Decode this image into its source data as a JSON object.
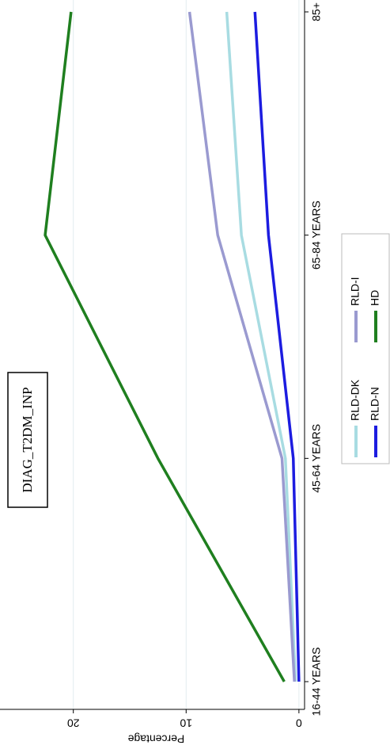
{
  "chart_data": {
    "type": "line",
    "title": "DIAG_T2DM_INP",
    "y_label": "Percentage",
    "categories": [
      "16-44 YEARS",
      "45-64 YEARS",
      "65-84 YEARS",
      "85+"
    ],
    "series": [
      {
        "name": "RLD-DK",
        "color": "#a8dce2",
        "values": [
          0.3,
          1.2,
          5.1,
          6.4
        ]
      },
      {
        "name": "RLD-I",
        "color": "#9a9ad0",
        "values": [
          0.4,
          1.5,
          7.2,
          9.7
        ]
      },
      {
        "name": "RLD-N",
        "color": "#1c1ce0",
        "values": [
          0.0,
          0.5,
          2.7,
          3.9
        ]
      },
      {
        "name": "HD",
        "color": "#1f7f1f",
        "values": [
          1.3,
          12.5,
          22.5,
          20.2
        ]
      }
    ],
    "ylim": [
      -0.5,
      25.8
    ],
    "yticks": [
      0,
      10,
      20
    ],
    "grid": true
  }
}
